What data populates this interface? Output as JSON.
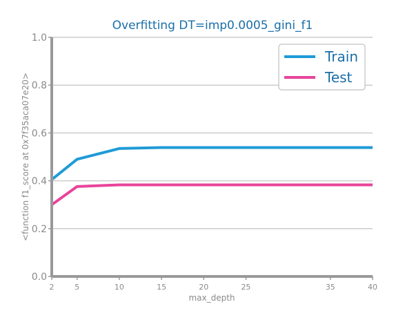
{
  "chart_data": {
    "type": "line",
    "title": "Overfitting DT=imp0.0005_gini_f1",
    "xlabel": "max_depth",
    "ylabel": "<function f1_score at 0x7f35aca07e20>",
    "x": [
      2,
      5,
      10,
      15,
      20,
      25,
      30,
      35,
      40
    ],
    "xticks": [
      2,
      5,
      10,
      15,
      20,
      25,
      35,
      40
    ],
    "xlim": [
      2,
      40
    ],
    "ylim": [
      0,
      1
    ],
    "yticks": [
      "0.0",
      "0.2",
      "0.4",
      "0.6",
      "0.8",
      "1.0"
    ],
    "grid": "horizontal",
    "legend_position": "top-right",
    "series": [
      {
        "name": "Train",
        "color": "#1f9bd7",
        "values": [
          0.405,
          0.49,
          0.535,
          0.539,
          0.539,
          0.539,
          0.539,
          0.539,
          0.539
        ]
      },
      {
        "name": "Test",
        "color": "#e8449b",
        "values": [
          0.3,
          0.376,
          0.383,
          0.383,
          0.383,
          0.383,
          0.383,
          0.383,
          0.383
        ]
      }
    ]
  }
}
